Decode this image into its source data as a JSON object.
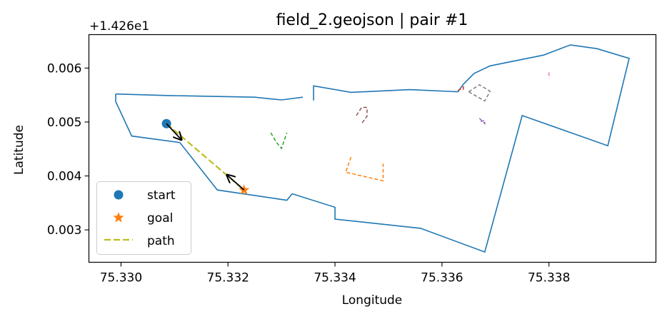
{
  "chart_data": {
    "type": "line",
    "title": "field_2.geojson | pair #1",
    "xlabel": "Longitude",
    "ylabel": "Latitude",
    "y_offset_label": "+1.426e1",
    "y_offset": 14.26,
    "xlim": [
      75.3294,
      75.34
    ],
    "ylim": [
      0.0024,
      0.00662
    ],
    "xticks": [
      {
        "value": 75.33,
        "label": "75.330"
      },
      {
        "value": 75.332,
        "label": "75.332"
      },
      {
        "value": 75.334,
        "label": "75.334"
      },
      {
        "value": 75.336,
        "label": "75.336"
      },
      {
        "value": 75.338,
        "label": "75.338"
      }
    ],
    "yticks": [
      {
        "value": 0.003,
        "label": "0.003"
      },
      {
        "value": 0.004,
        "label": "0.004"
      },
      {
        "value": 0.005,
        "label": "0.005"
      },
      {
        "value": 0.006,
        "label": "0.006"
      }
    ],
    "legend": {
      "position": "lower left",
      "entries": [
        {
          "label": "start",
          "marker": "circle",
          "color": "#1f77b4"
        },
        {
          "label": "goal",
          "marker": "star",
          "color": "#ff7f0e"
        },
        {
          "label": "path",
          "marker": "dashed-line",
          "color": "#bcbd22"
        }
      ]
    },
    "boundary": {
      "color": "#1f77b4",
      "segments": [
        [
          [
            75.3299,
            0.00552
          ],
          [
            75.3309,
            0.00549
          ],
          [
            75.3325,
            0.00546
          ],
          [
            75.333,
            0.00541
          ],
          [
            75.3334,
            0.00546
          ]
        ],
        [
          [
            75.3336,
            0.0054
          ],
          [
            75.3336,
            0.00567
          ],
          [
            75.3343,
            0.00555
          ],
          [
            75.3354,
            0.0056
          ],
          [
            75.3363,
            0.00556
          ],
          [
            75.3364,
            0.0057
          ],
          [
            75.3366,
            0.0059
          ],
          [
            75.3369,
            0.00604
          ],
          [
            75.3379,
            0.00624
          ],
          [
            75.3384,
            0.00643
          ],
          [
            75.3389,
            0.00636
          ],
          [
            75.3395,
            0.00618
          ],
          [
            75.3391,
            0.00456
          ],
          [
            75.3375,
            0.00512
          ],
          [
            75.3368,
            0.00259
          ],
          [
            75.3356,
            0.00303
          ],
          [
            75.334,
            0.0032
          ],
          [
            75.334,
            0.00342
          ],
          [
            75.3332,
            0.00367
          ],
          [
            75.3331,
            0.00355
          ],
          [
            75.3318,
            0.00374
          ],
          [
            75.3311,
            0.00462
          ],
          [
            75.3302,
            0.00474
          ],
          [
            75.3299,
            0.00538
          ],
          [
            75.3299,
            0.00552
          ]
        ]
      ]
    },
    "obstacles": [
      {
        "color": "#ff7f0e",
        "points": [
          [
            75.3343,
            0.00435
          ],
          [
            75.3342,
            0.00407
          ],
          [
            75.3349,
            0.00391
          ],
          [
            75.3349,
            0.00423
          ]
        ]
      },
      {
        "color": "#2ca02c",
        "points": [
          [
            75.3328,
            0.0048
          ],
          [
            75.3329,
            0.00463
          ],
          [
            75.333,
            0.00451
          ],
          [
            75.3331,
            0.0048
          ]
        ]
      },
      {
        "color": "#d62728",
        "points": [
          [
            75.3363,
            0.00558
          ],
          [
            75.3364,
            0.00565
          ],
          [
            75.3364,
            0.0056
          ]
        ]
      },
      {
        "color": "#9467bd",
        "points": [
          [
            75.3367,
            0.00507
          ],
          [
            75.3368,
            0.00497
          ],
          [
            75.3368,
            0.00503
          ],
          [
            75.3367,
            0.005
          ]
        ]
      },
      {
        "color": "#8c564b",
        "points": [
          [
            75.3344,
            0.00512
          ],
          [
            75.3345,
            0.00527
          ],
          [
            75.3346,
            0.00527
          ],
          [
            75.3346,
            0.00511
          ],
          [
            75.3345,
            0.00497
          ]
        ]
      },
      {
        "color": "#e377c2",
        "points": [
          [
            75.338,
            0.00592
          ],
          [
            75.338,
            0.00585
          ],
          [
            75.338,
            0.00581
          ]
        ]
      },
      {
        "color": "#7f7f7f",
        "points": [
          [
            75.3365,
            0.00556
          ],
          [
            75.3368,
            0.00539
          ],
          [
            75.3369,
            0.00557
          ],
          [
            75.3367,
            0.00569
          ],
          [
            75.3365,
            0.00556
          ]
        ]
      }
    ],
    "start": {
      "x": 75.33085,
      "y": 0.00497
    },
    "goal": {
      "x": 75.3323,
      "y": 0.00374
    },
    "path": {
      "color": "#bcbd22",
      "points": [
        [
          75.33085,
          0.00497
        ],
        [
          75.3323,
          0.00374
        ]
      ]
    },
    "arrows": [
      {
        "from": [
          75.33085,
          0.00497
        ],
        "to": [
          75.33113,
          0.00467
        ]
      },
      {
        "from": [
          75.3323,
          0.00374
        ],
        "to": [
          75.33198,
          0.00402
        ]
      }
    ]
  }
}
